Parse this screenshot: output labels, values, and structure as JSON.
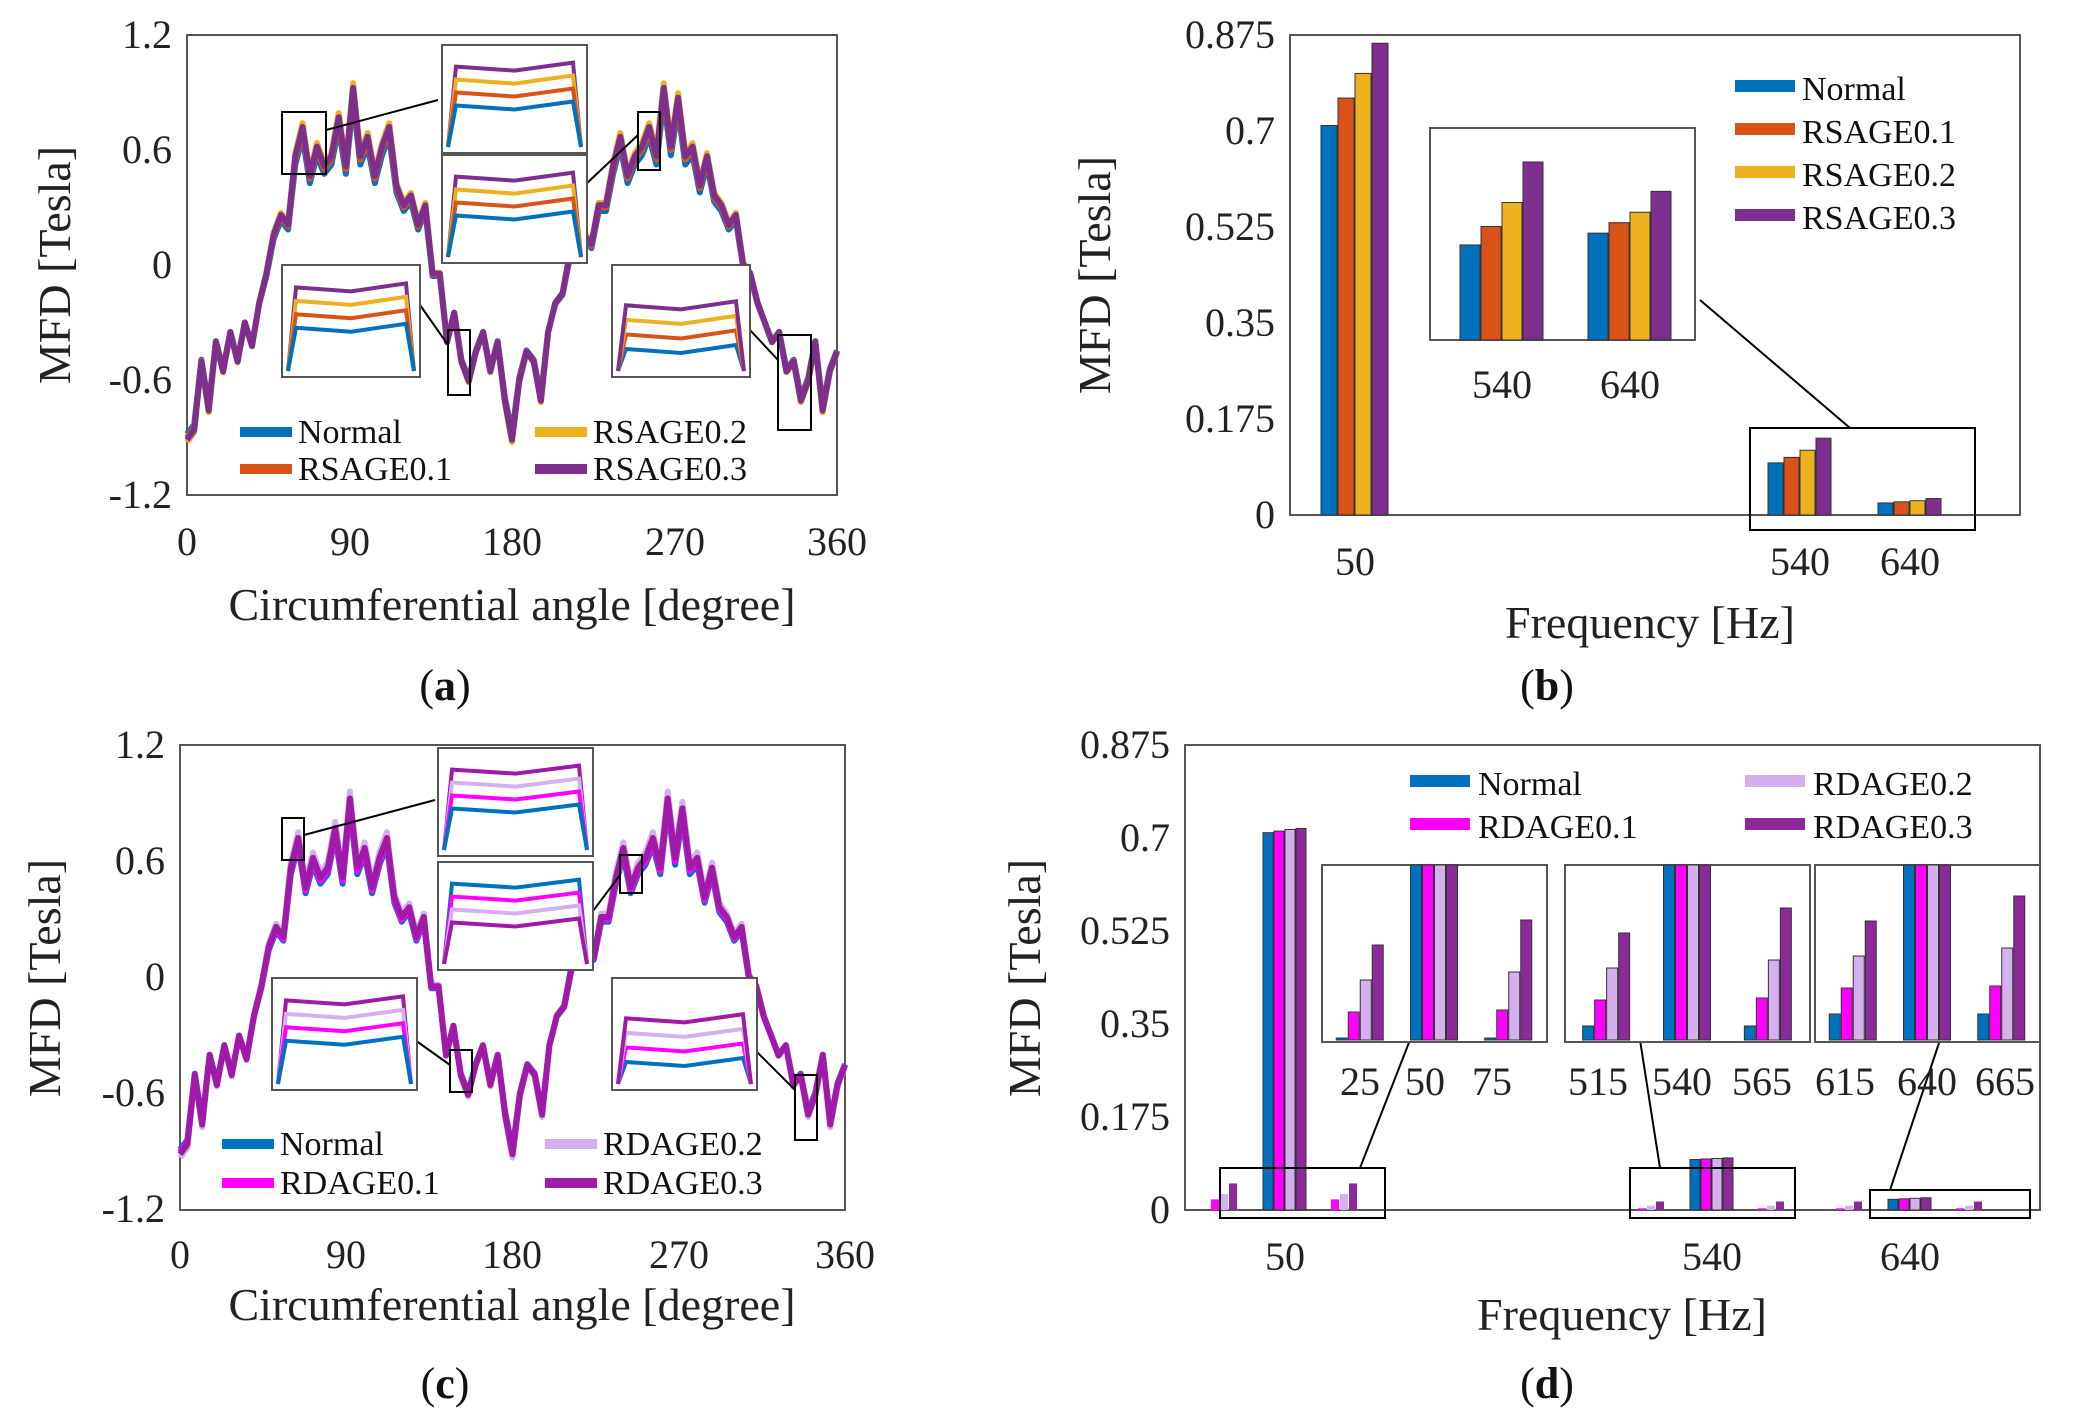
{
  "colors": {
    "normal": "#0072bd",
    "rsage01": "#d95319",
    "rsage02": "#edb120",
    "rsage03": "#7e2f8e",
    "rdage01": "#ff00ff",
    "rdage02": "#d4b0ee",
    "rdage03": "#8b2a98",
    "rdage03_line": "#a01aa8"
  },
  "panels": {
    "a": {
      "label_open": "(",
      "label_letter": "a",
      "label_close": ")"
    },
    "b": {
      "label_open": "(",
      "label_letter": "b",
      "label_close": ")"
    },
    "c": {
      "label_open": "(",
      "label_letter": "c",
      "label_close": ")"
    },
    "d": {
      "label_open": "(",
      "label_letter": "d",
      "label_close": ")"
    }
  },
  "chart_data": [
    {
      "id": "a",
      "type": "line",
      "xlabel": "Circumferential angle [degree]",
      "ylabel": "MFD [Tesla]",
      "xlim": [
        0,
        360
      ],
      "ylim": [
        -1.2,
        1.2
      ],
      "xticks": [
        "0",
        "90",
        "180",
        "270",
        "360"
      ],
      "yticks": [
        "1.2",
        "0.6",
        "0",
        "-0.6",
        "-1.2"
      ],
      "legend": [
        "Normal",
        "RSAGE0.1",
        "RSAGE0.2",
        "RSAGE0.3"
      ],
      "legend_position": "bottom",
      "base_waveform": {
        "x": [
          0,
          4,
          8,
          12,
          16,
          20,
          24,
          28,
          32,
          36,
          40,
          44,
          48,
          52,
          56,
          60,
          64,
          68,
          72,
          76,
          80,
          84,
          88,
          92,
          96,
          100,
          104,
          108,
          112,
          116,
          120,
          124,
          128,
          132,
          136,
          140,
          144,
          148,
          152,
          156,
          160,
          164,
          168,
          172,
          176,
          180,
          184,
          188,
          192,
          196,
          200,
          204,
          208,
          212,
          216,
          220,
          224,
          228,
          232,
          236,
          240,
          244,
          248,
          252,
          256,
          260,
          264,
          268,
          272,
          276,
          280,
          284,
          288,
          292,
          296,
          300,
          304,
          308,
          312,
          316,
          320,
          324,
          328,
          332,
          336,
          340,
          344,
          348,
          352,
          356,
          360
        ],
        "y": [
          -0.9,
          -0.85,
          -0.5,
          -0.75,
          -0.4,
          -0.55,
          -0.35,
          -0.5,
          -0.3,
          -0.42,
          -0.2,
          -0.05,
          0.15,
          0.25,
          0.2,
          0.55,
          0.7,
          0.45,
          0.6,
          0.5,
          0.55,
          0.75,
          0.5,
          0.9,
          0.55,
          0.65,
          0.45,
          0.6,
          0.7,
          0.4,
          0.3,
          0.35,
          0.2,
          0.3,
          -0.05,
          -0.05,
          -0.4,
          -0.25,
          -0.5,
          -0.6,
          -0.45,
          -0.35,
          -0.55,
          -0.4,
          -0.7,
          -0.9,
          -0.6,
          -0.45,
          -0.5,
          -0.7,
          -0.35,
          -0.2,
          -0.15,
          0.05,
          0.1,
          0.15,
          0.1,
          0.3,
          0.3,
          0.5,
          0.65,
          0.45,
          0.55,
          0.6,
          0.7,
          0.55,
          0.9,
          0.6,
          0.85,
          0.55,
          0.6,
          0.4,
          0.55,
          0.35,
          0.3,
          0.2,
          0.25,
          0,
          -0.05,
          -0.2,
          -0.3,
          -0.4,
          -0.35,
          -0.55,
          -0.5,
          -0.7,
          -0.6,
          -0.4,
          -0.75,
          -0.55,
          -0.45
        ]
      },
      "series": [
        {
          "name": "Normal",
          "offset": -0.03
        },
        {
          "name": "RSAGE0.1",
          "offset": 0.0
        },
        {
          "name": "RSAGE0.2",
          "offset": 0.04
        },
        {
          "name": "RSAGE0.3",
          "offset": 0.02
        }
      ]
    },
    {
      "id": "b",
      "type": "bar",
      "xlabel": "Frequency [Hz]",
      "ylabel": "MFD [Tesla]",
      "ylim": [
        0,
        0.875
      ],
      "yticks": [
        "0.875",
        "0.7",
        "0.525",
        "0.35",
        "0.175",
        "0"
      ],
      "categories": [
        "50",
        "540",
        "640"
      ],
      "series": [
        {
          "name": "Normal",
          "values": [
            0.71,
            0.095,
            0.022
          ]
        },
        {
          "name": "RSAGE0.1",
          "values": [
            0.76,
            0.105,
            0.024
          ]
        },
        {
          "name": "RSAGE0.2",
          "values": [
            0.805,
            0.118,
            0.026
          ]
        },
        {
          "name": "RSAGE0.3",
          "values": [
            0.86,
            0.14,
            0.03
          ]
        }
      ],
      "inset_categories": [
        "540",
        "640"
      ],
      "legend_position": "top-right"
    },
    {
      "id": "c",
      "type": "line",
      "xlabel": "Circumferential angle [degree]",
      "ylabel": "MFD [Tesla]",
      "xlim": [
        0,
        360
      ],
      "ylim": [
        -1.2,
        1.2
      ],
      "xticks": [
        "0",
        "90",
        "180",
        "270",
        "360"
      ],
      "yticks": [
        "1.2",
        "0.6",
        "0",
        "-0.6",
        "-1.2"
      ],
      "legend": [
        "Normal",
        "RDAGE0.1",
        "RDAGE0.2",
        "RDAGE0.3"
      ],
      "legend_position": "bottom",
      "series": [
        {
          "name": "Normal",
          "offset": -0.02
        },
        {
          "name": "RDAGE0.1",
          "offset": 0.0
        },
        {
          "name": "RDAGE0.2",
          "offset": 0.05
        },
        {
          "name": "RDAGE0.3",
          "offset": 0.02
        }
      ]
    },
    {
      "id": "d",
      "type": "bar",
      "xlabel": "Frequency [Hz]",
      "ylabel": "MFD [Tesla]",
      "ylim": [
        0,
        0.875
      ],
      "yticks": [
        "0.875",
        "0.7",
        "0.525",
        "0.35",
        "0.175",
        "0"
      ],
      "categories": [
        "50",
        "540",
        "640"
      ],
      "series": [
        {
          "name": "Normal",
          "values": [
            0.71,
            0.095,
            0.02
          ]
        },
        {
          "name": "RDAGE0.1",
          "values": [
            0.713,
            0.096,
            0.021
          ]
        },
        {
          "name": "RDAGE0.2",
          "values": [
            0.716,
            0.097,
            0.022
          ]
        },
        {
          "name": "RDAGE0.3",
          "values": [
            0.718,
            0.098,
            0.023
          ]
        }
      ],
      "inset_groups": [
        {
          "ticks": [
            "25",
            "50",
            "75"
          ]
        },
        {
          "ticks": [
            "515",
            "540",
            "565"
          ]
        },
        {
          "ticks": [
            "615",
            "640",
            "665"
          ]
        }
      ],
      "legend_position": "top"
    }
  ]
}
